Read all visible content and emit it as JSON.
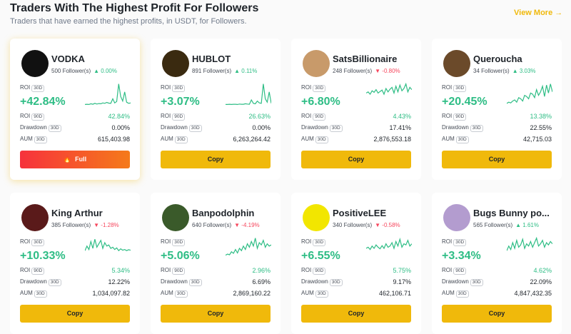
{
  "header": {
    "title": "Traders With The Highest Profit For Followers",
    "subtitle": "Traders that have earned the highest profits, in USDT, for Followers.",
    "view_more": "View More"
  },
  "labels": {
    "roi": "ROI",
    "d30": "30D",
    "d90": "90D",
    "drawdown": "Drawdown",
    "aum": "AUM"
  },
  "cards": [
    {
      "name": "VODKA",
      "followers": "500 Follower(s)",
      "trend": "up",
      "change": "0.00%",
      "roi_30d": "+42.84%",
      "roi_90d": "42.84%",
      "drawdown": "0.00%",
      "aum": "615,403.98",
      "button": "Full",
      "sparkline": [
        5,
        6,
        5,
        8,
        6,
        10,
        7,
        9,
        8,
        12,
        10,
        14,
        11,
        10,
        30,
        12,
        18,
        95,
        40,
        20,
        60,
        15,
        10,
        12
      ]
    },
    {
      "name": "HUBLOT",
      "followers": "891 Follower(s)",
      "trend": "up",
      "change": "0.11%",
      "roi_30d": "+3.07%",
      "roi_90d": "26.63%",
      "drawdown": "0.00%",
      "aum": "6,263,264.42",
      "button": "Copy",
      "sparkline": [
        5,
        5,
        6,
        5,
        6,
        6,
        5,
        7,
        6,
        6,
        8,
        7,
        6,
        25,
        10,
        8,
        20,
        12,
        10,
        95,
        30,
        15,
        60,
        10
      ]
    },
    {
      "name": "SatsBillionaire",
      "followers": "248 Follower(s)",
      "trend": "down",
      "change": "-0.80%",
      "roi_30d": "+6.80%",
      "roi_90d": "4.43%",
      "drawdown": "17.41%",
      "aum": "2,876,553.18",
      "button": "Copy",
      "sparkline": [
        55,
        60,
        50,
        65,
        58,
        70,
        55,
        62,
        68,
        50,
        75,
        60,
        72,
        80,
        55,
        85,
        60,
        90,
        65,
        75,
        95,
        60,
        80,
        70
      ]
    },
    {
      "name": "Queroucha",
      "followers": "34 Follower(s)",
      "trend": "up",
      "change": "3.03%",
      "roi_30d": "+20.45%",
      "roi_90d": "13.38%",
      "drawdown": "22.55%",
      "aum": "42,715.03",
      "button": "Copy",
      "sparkline": [
        10,
        15,
        12,
        20,
        25,
        15,
        35,
        30,
        20,
        45,
        40,
        30,
        55,
        50,
        35,
        70,
        45,
        60,
        85,
        40,
        90,
        55,
        95,
        60
      ]
    },
    {
      "name": "King Arthur",
      "followers": "385 Follower(s)",
      "trend": "down",
      "change": "-1.28%",
      "roi_30d": "+10.33%",
      "roi_90d": "5.34%",
      "drawdown": "12.22%",
      "aum": "1,034,097.82",
      "button": "Copy",
      "sparkline": [
        40,
        60,
        45,
        80,
        50,
        90,
        55,
        70,
        85,
        50,
        75,
        60,
        65,
        50,
        55,
        45,
        52,
        40,
        48,
        42,
        45,
        40,
        44,
        42
      ]
    },
    {
      "name": "Banpodolphin",
      "followers": "640 Follower(s)",
      "trend": "down",
      "change": "-4.19%",
      "roi_30d": "+5.06%",
      "roi_90d": "2.96%",
      "drawdown": "6.69%",
      "aum": "2,869,160.22",
      "button": "Copy",
      "sparkline": [
        20,
        25,
        22,
        35,
        28,
        45,
        30,
        50,
        40,
        60,
        45,
        70,
        55,
        80,
        60,
        95,
        50,
        75,
        65,
        85,
        55,
        70,
        60,
        65
      ]
    },
    {
      "name": "PositiveLEE",
      "followers": "340 Follower(s)",
      "trend": "down",
      "change": "-0.58%",
      "roi_30d": "+6.55%",
      "roi_90d": "5.75%",
      "drawdown": "9.17%",
      "aum": "462,106.71",
      "button": "Copy",
      "sparkline": [
        50,
        55,
        45,
        60,
        50,
        65,
        55,
        48,
        62,
        50,
        70,
        55,
        60,
        75,
        50,
        80,
        60,
        90,
        55,
        70,
        65,
        85,
        60,
        70
      ]
    },
    {
      "name": "Bugs Bunny po...",
      "followers": "565 Follower(s)",
      "trend": "up",
      "change": "1.61%",
      "roi_30d": "+3.34%",
      "roi_90d": "4.62%",
      "drawdown": "22.09%",
      "aum": "4,847,432.35",
      "button": "Copy",
      "sparkline": [
        40,
        60,
        45,
        75,
        50,
        85,
        55,
        65,
        90,
        50,
        70,
        60,
        80,
        55,
        75,
        95,
        60,
        70,
        85,
        55,
        75,
        65,
        80,
        70
      ]
    }
  ]
}
